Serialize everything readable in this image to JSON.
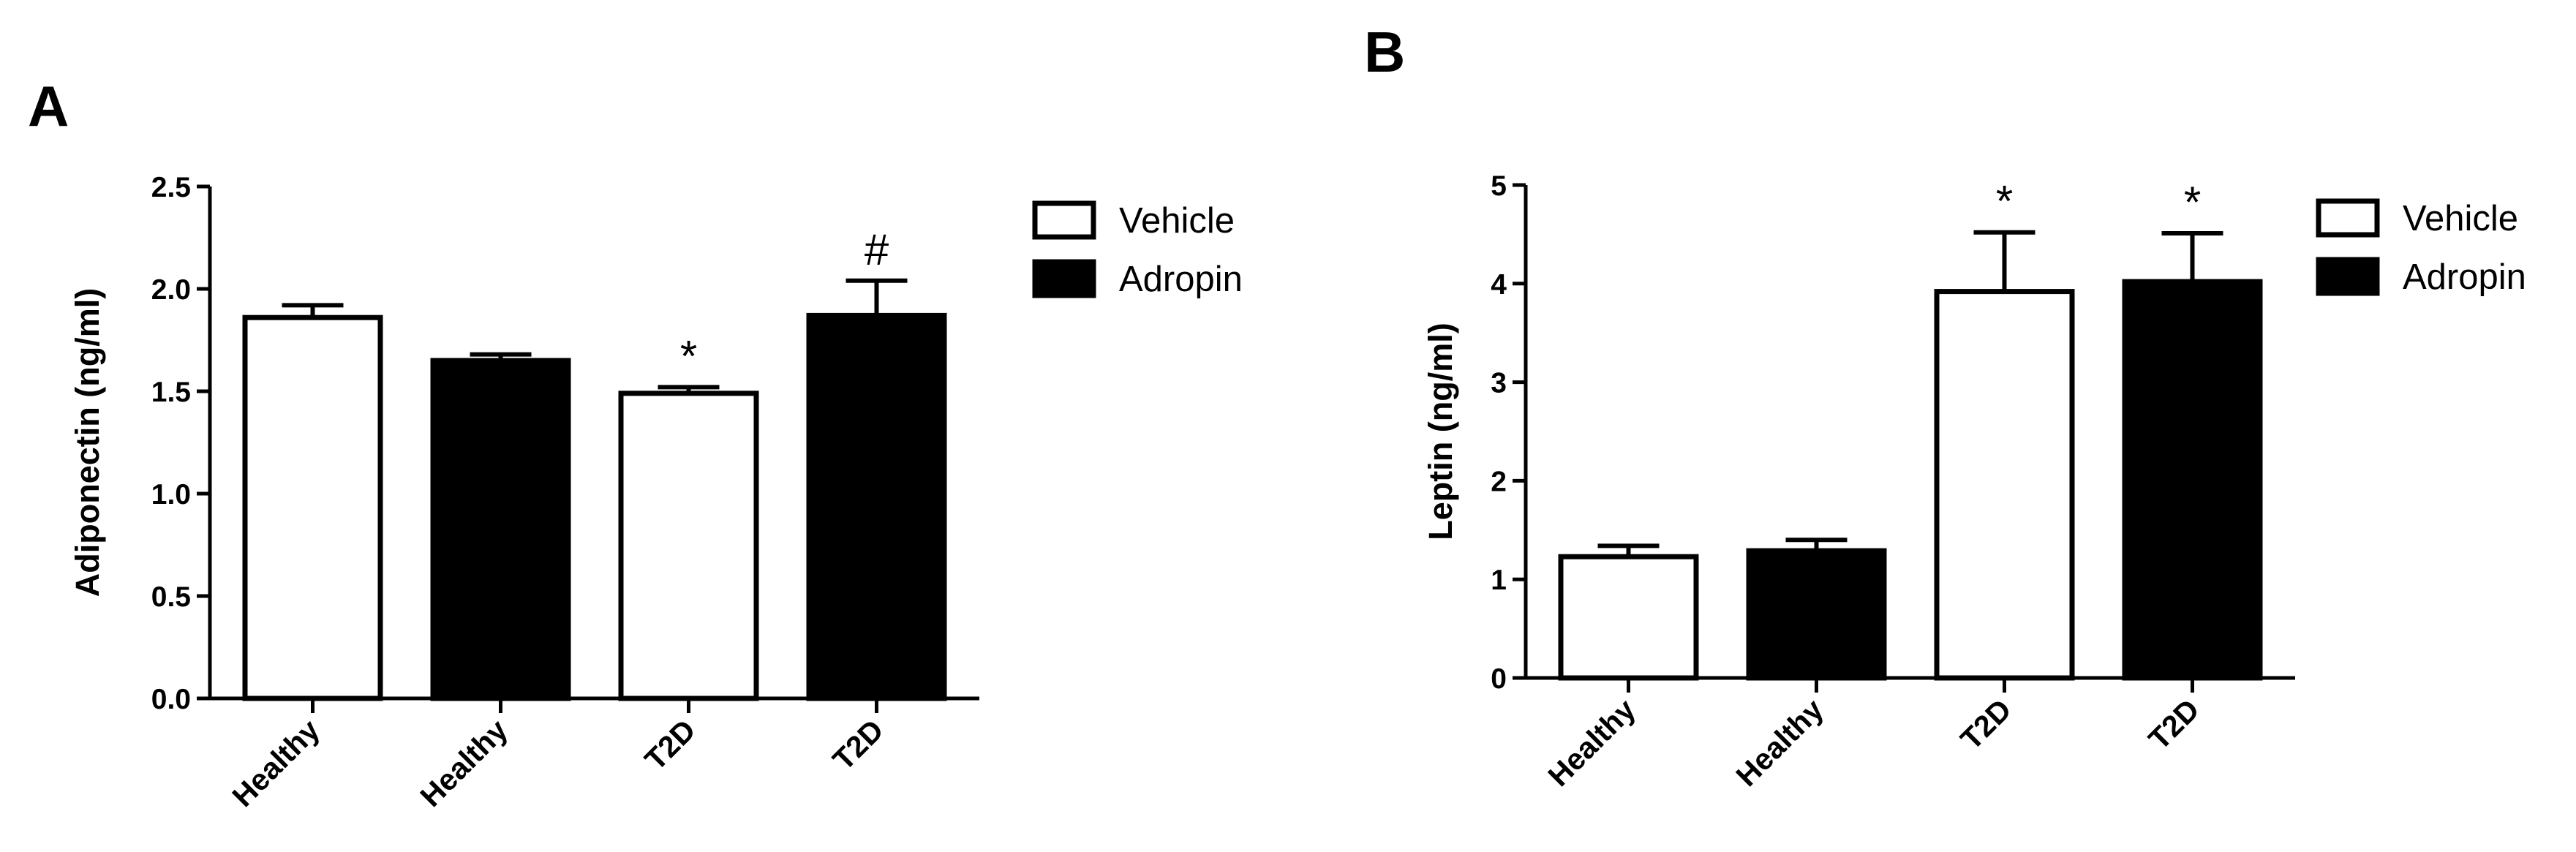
{
  "chart_data": [
    {
      "type": "bar",
      "panel_label": "A",
      "ylabel": "Adiponectin (ng/ml)",
      "ylim": [
        0,
        2.5
      ],
      "yticks": [
        "0.0",
        "0.5",
        "1.0",
        "1.5",
        "2.0",
        "2.5"
      ],
      "categories": [
        "Healthy",
        "Healthy",
        "T2D",
        "T2D"
      ],
      "groups": [
        "Vehicle",
        "Adropin",
        "Vehicle",
        "Adropin"
      ],
      "values": [
        1.86,
        1.65,
        1.49,
        1.87
      ],
      "errors": [
        0.06,
        0.03,
        0.03,
        0.17
      ],
      "annotations": [
        "",
        "",
        "*",
        "#"
      ],
      "legend": [
        {
          "name": "Vehicle",
          "fill": "#ffffff"
        },
        {
          "name": "Adropin",
          "fill": "#000000"
        }
      ],
      "legend_position": "right",
      "grid": false
    },
    {
      "type": "bar",
      "panel_label": "B",
      "ylabel": "Leptin (ng/ml)",
      "ylim": [
        0,
        5
      ],
      "yticks": [
        "0",
        "1",
        "2",
        "3",
        "4",
        "5"
      ],
      "categories": [
        "Healthy",
        "Healthy",
        "T2D",
        "T2D"
      ],
      "groups": [
        "Vehicle",
        "Adropin",
        "Vehicle",
        "Adropin"
      ],
      "values": [
        1.23,
        1.29,
        3.92,
        4.02
      ],
      "errors": [
        0.11,
        0.11,
        0.6,
        0.49
      ],
      "annotations": [
        "",
        "",
        "*",
        "*"
      ],
      "legend": [
        {
          "name": "Vehicle",
          "fill": "#ffffff"
        },
        {
          "name": "Adropin",
          "fill": "#000000"
        }
      ],
      "legend_position": "right",
      "grid": false
    }
  ]
}
